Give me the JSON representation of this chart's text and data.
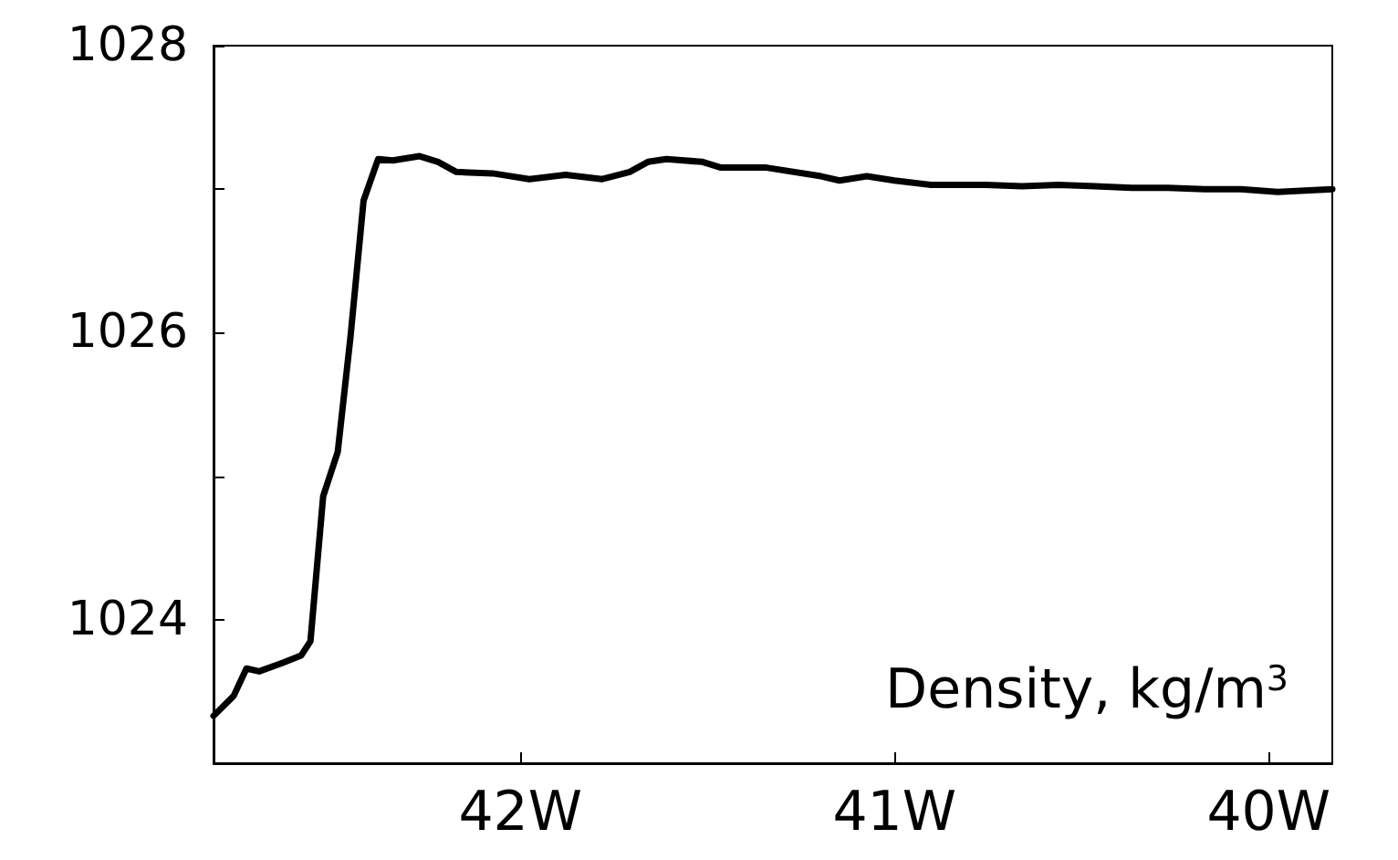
{
  "chart_data": {
    "type": "line",
    "x": [
      -42.82,
      -42.766,
      -42.732,
      -42.698,
      -42.635,
      -42.586,
      -42.561,
      -42.527,
      -42.488,
      -42.454,
      -42.419,
      -42.38,
      -42.341,
      -42.269,
      -42.22,
      -42.171,
      -42.074,
      -41.976,
      -41.879,
      -41.781,
      -41.708,
      -41.659,
      -41.61,
      -41.513,
      -41.464,
      -41.342,
      -41.196,
      -41.147,
      -41.074,
      -41.0,
      -40.903,
      -40.757,
      -40.659,
      -40.562,
      -40.464,
      -40.366,
      -40.269,
      -40.171,
      -40.074,
      -39.976,
      -39.83
    ],
    "series": [
      {
        "color": "#000000",
        "values": [
          1023.33,
          1023.47,
          1023.66,
          1023.64,
          1023.7,
          1023.75,
          1023.85,
          1024.86,
          1025.17,
          1025.97,
          1026.92,
          1027.21,
          1027.2,
          1027.23,
          1027.19,
          1027.12,
          1027.11,
          1027.07,
          1027.1,
          1027.07,
          1027.12,
          1027.19,
          1027.21,
          1027.19,
          1027.15,
          1027.15,
          1027.09,
          1027.06,
          1027.09,
          1027.06,
          1027.03,
          1027.03,
          1027.02,
          1027.03,
          1027.02,
          1027.01,
          1027.01,
          1027.0,
          1027.0,
          1026.98,
          1027.0
        ]
      }
    ],
    "xlim": [
      -42.82,
      -39.83
    ],
    "xticks": [
      {
        "value": -42,
        "label": "42W"
      },
      {
        "value": -41,
        "label": "41W"
      },
      {
        "value": -40,
        "label": "40W"
      }
    ],
    "ylim": [
      1023,
      1028
    ],
    "yticks": [
      1024,
      {
        "value": 1025,
        "label": null
      },
      1026,
      {
        "value": 1027,
        "label": null
      },
      1028
    ],
    "annotations": [
      "Density, kg/m$^{3}$"
    ],
    "grid": false,
    "marker": "none",
    "line_style": "solid"
  }
}
